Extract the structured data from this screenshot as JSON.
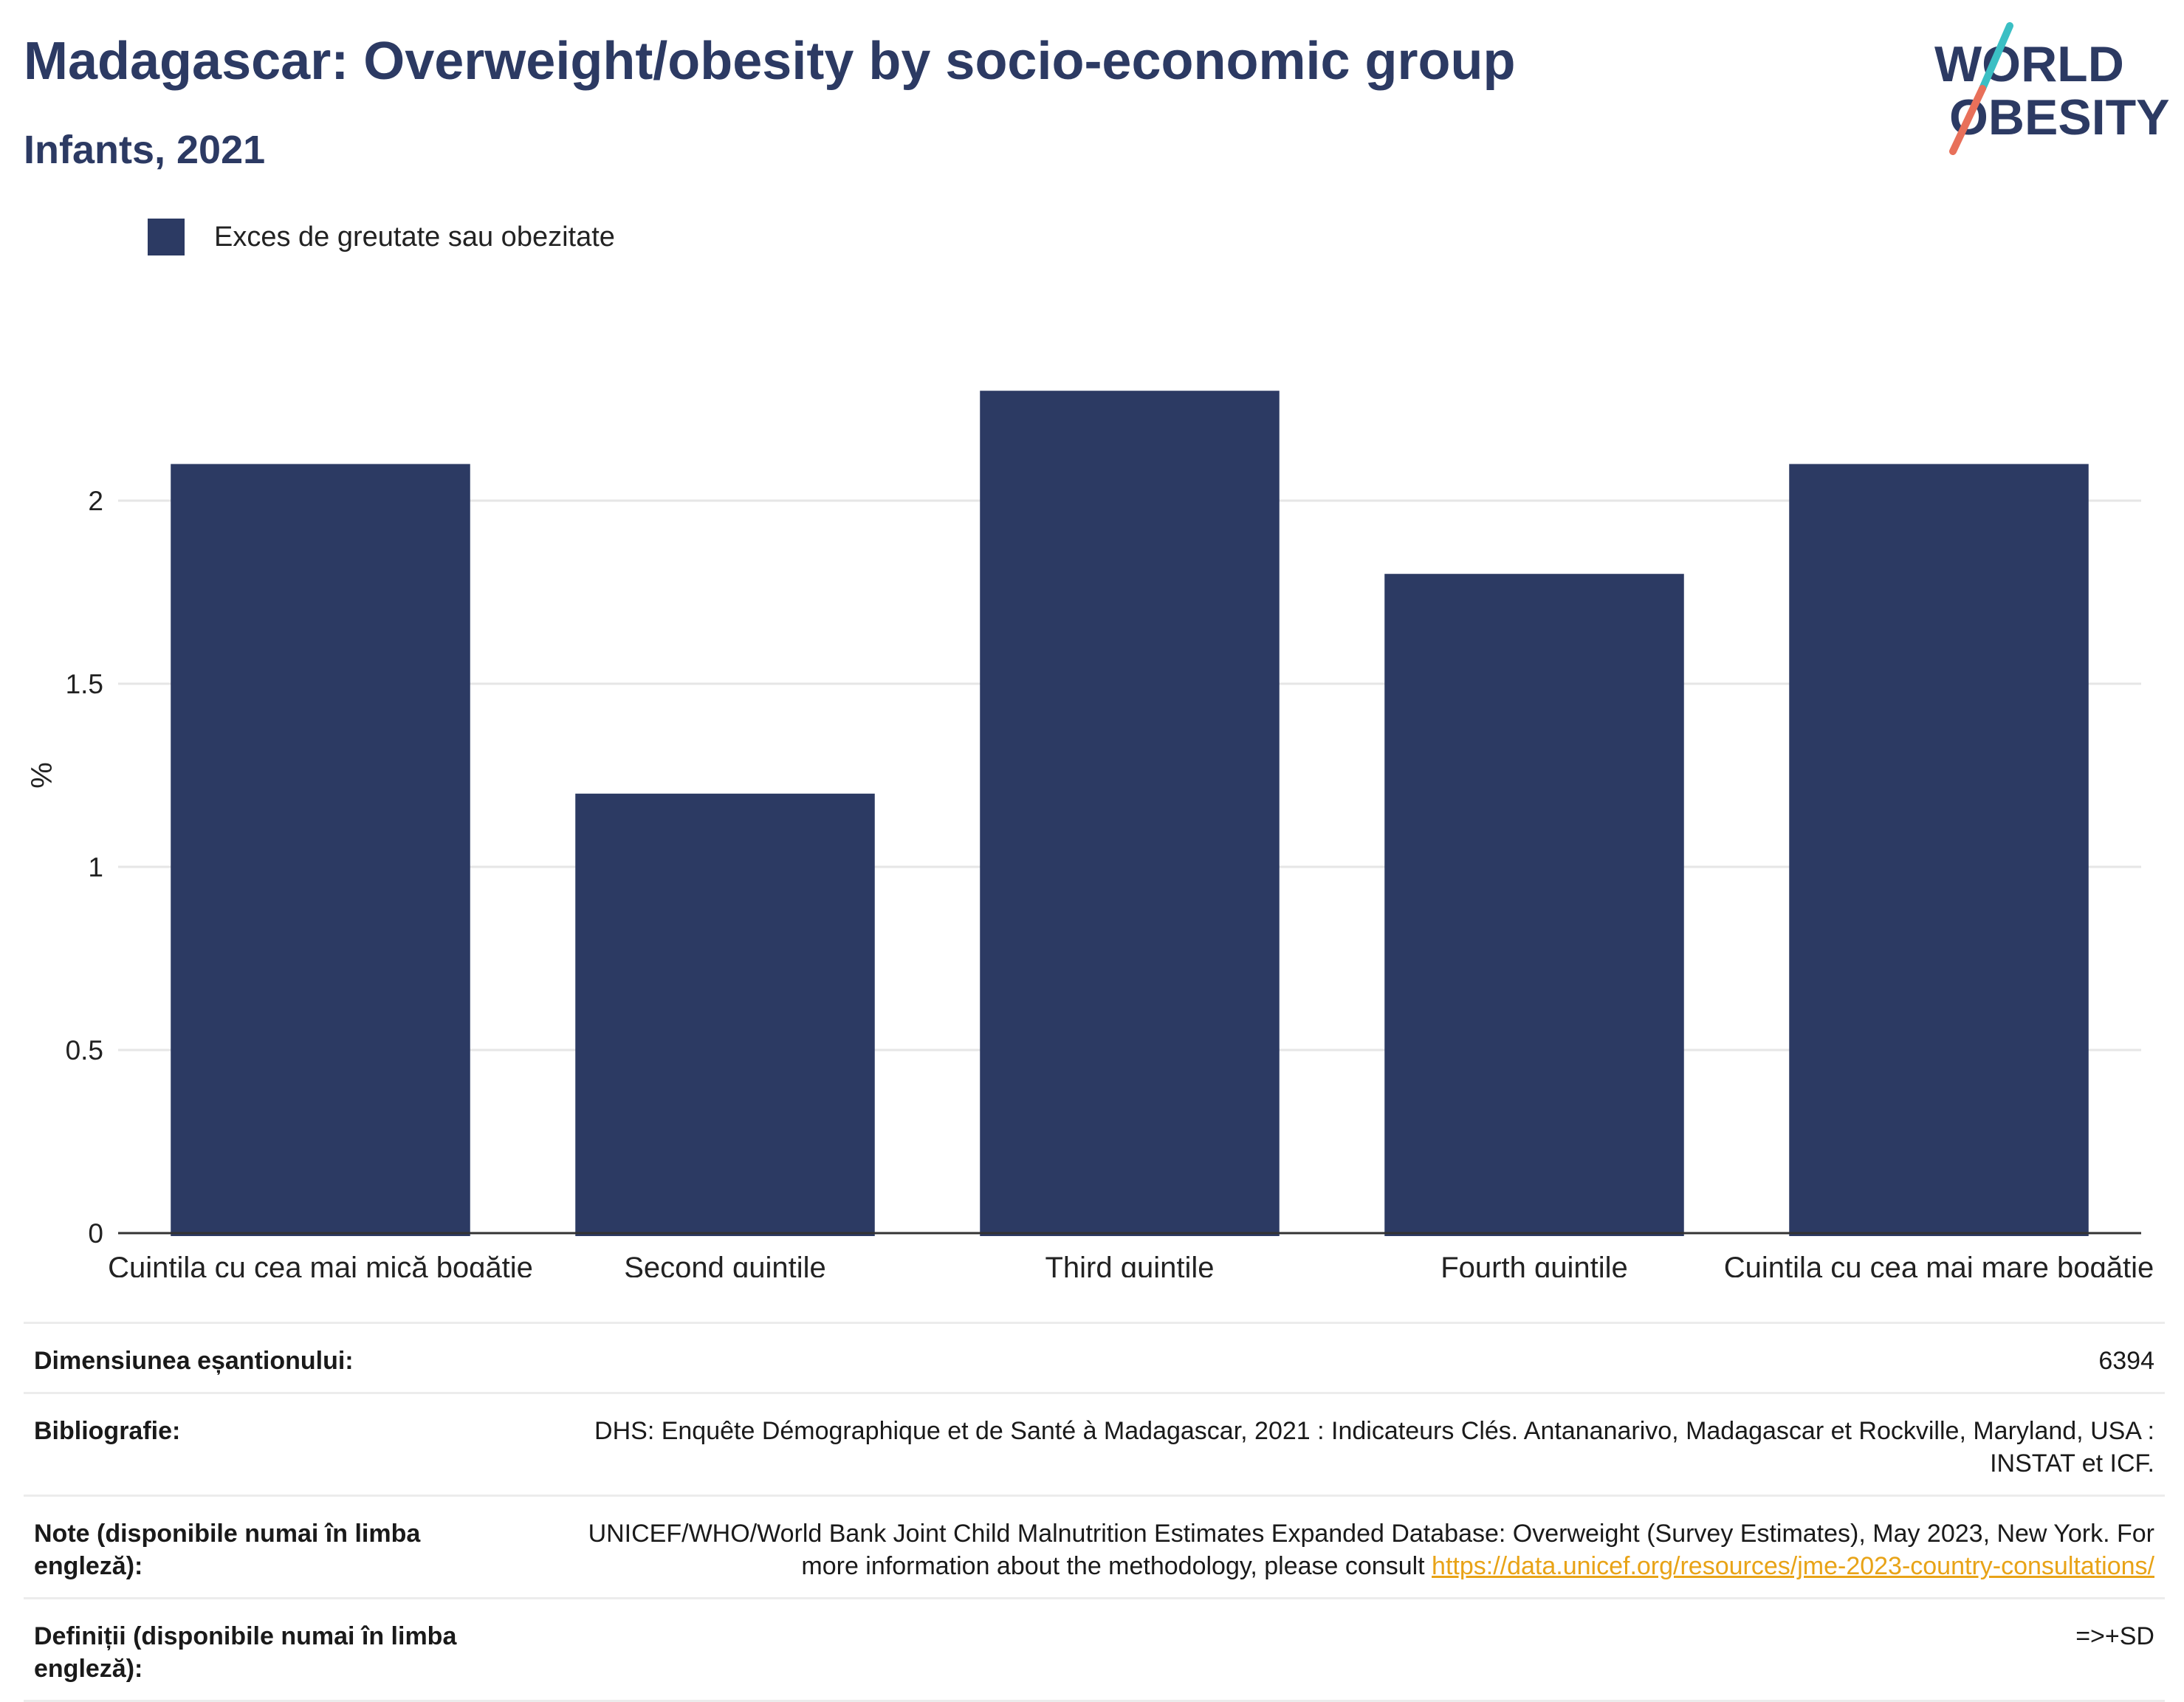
{
  "header": {
    "title": "Madagascar: Overweight/obesity by socio-economic group",
    "subtitle": "Infants, 2021"
  },
  "logo": {
    "line1": "WORLD",
    "line2": "OBESITY",
    "colors": {
      "text": "#2c3a63",
      "slash_top": "#3bbfc4",
      "slash_bottom": "#e8705a"
    }
  },
  "colors": {
    "bar": "#2c3a63",
    "grid": "#e6e6e6",
    "axis": "#333333",
    "link": "#e8a317"
  },
  "chart_data": {
    "type": "bar",
    "categories": [
      "Cuintila cu cea mai mică bogăție",
      "Second quintile",
      "Third quintile",
      "Fourth quintile",
      "Cuintila cu cea mai mare bogăție"
    ],
    "series": [
      {
        "name": "Exces de greutate sau obezitate",
        "values": [
          2.1,
          1.2,
          2.3,
          1.8,
          2.1
        ]
      }
    ],
    "ylabel": "%",
    "ylim": [
      0,
      2.5
    ],
    "yticks": [
      0,
      0.5,
      1,
      1.5,
      2
    ],
    "ytick_labels": [
      "0",
      "0.5",
      "1",
      "1.5",
      "2"
    ],
    "grid": true,
    "legend": "top-left"
  },
  "meta": [
    {
      "key": "Dimensiunea eșantionului:",
      "value": "6394"
    },
    {
      "key": "Bibliografie:",
      "value": "DHS: Enquête Démographique et de Santé à Madagascar, 2021 : Indicateurs Clés. Antananarivo, Madagascar et Rockville, Maryland, USA : INSTAT et ICF."
    },
    {
      "key": "Note (disponibile numai în limba engleză):",
      "value": "UNICEF/WHO/World Bank Joint Child Malnutrition Estimates Expanded Database: Overweight (Survey Estimates), May 2023, New York. For more information about the methodology, please consult ",
      "link": "https://data.unicef.org/resources/jme-2023-country-consultations/"
    },
    {
      "key": "Definiții (disponibile numai în limba engleză):",
      "value": "=>+SD"
    }
  ]
}
